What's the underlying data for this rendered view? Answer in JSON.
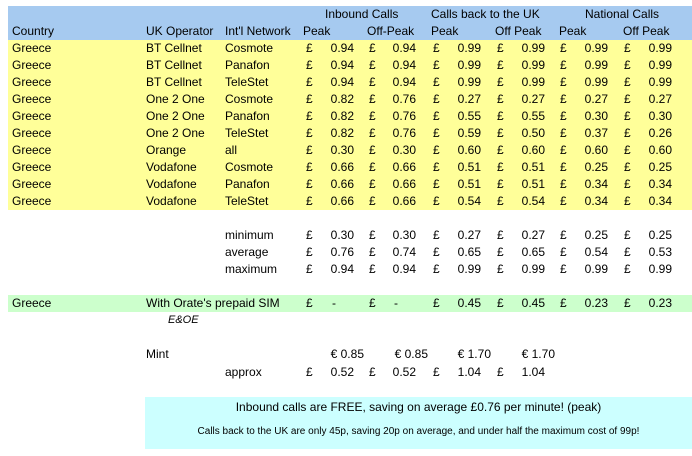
{
  "header": {
    "groups": [
      "Inbound Calls",
      "Calls back to the UK",
      "National Calls"
    ],
    "columns": [
      "Country",
      "UK Operator",
      "Int'l Network",
      "Peak",
      "Off-Peak",
      "Peak",
      "Off Peak",
      "Peak",
      "Off Peak"
    ]
  },
  "currency": "£",
  "rows": [
    {
      "country": "Greece",
      "operator": "BT Cellnet",
      "network": "Cosmote",
      "v": [
        "0.94",
        "0.94",
        "0.99",
        "0.99",
        "0.99",
        "0.99"
      ]
    },
    {
      "country": "Greece",
      "operator": "BT Cellnet",
      "network": "Panafon",
      "v": [
        "0.94",
        "0.94",
        "0.99",
        "0.99",
        "0.99",
        "0.99"
      ]
    },
    {
      "country": "Greece",
      "operator": "BT Cellnet",
      "network": "TeleStet",
      "v": [
        "0.94",
        "0.94",
        "0.99",
        "0.99",
        "0.99",
        "0.99"
      ]
    },
    {
      "country": "Greece",
      "operator": "One 2 One",
      "network": "Cosmote",
      "v": [
        "0.82",
        "0.76",
        "0.27",
        "0.27",
        "0.27",
        "0.27"
      ]
    },
    {
      "country": "Greece",
      "operator": "One 2 One",
      "network": "Panafon",
      "v": [
        "0.82",
        "0.76",
        "0.55",
        "0.55",
        "0.30",
        "0.30"
      ]
    },
    {
      "country": "Greece",
      "operator": "One 2 One",
      "network": "TeleStet",
      "v": [
        "0.82",
        "0.76",
        "0.59",
        "0.50",
        "0.37",
        "0.26"
      ]
    },
    {
      "country": "Greece",
      "operator": "Orange",
      "network": "all",
      "v": [
        "0.30",
        "0.30",
        "0.60",
        "0.60",
        "0.60",
        "0.60"
      ]
    },
    {
      "country": "Greece",
      "operator": "Vodafone",
      "network": "Cosmote",
      "v": [
        "0.66",
        "0.66",
        "0.51",
        "0.51",
        "0.25",
        "0.25"
      ]
    },
    {
      "country": "Greece",
      "operator": "Vodafone",
      "network": "Panafon",
      "v": [
        "0.66",
        "0.66",
        "0.51",
        "0.51",
        "0.34",
        "0.34"
      ]
    },
    {
      "country": "Greece",
      "operator": "Vodafone",
      "network": "TeleStet",
      "v": [
        "0.66",
        "0.66",
        "0.54",
        "0.54",
        "0.34",
        "0.34"
      ]
    }
  ],
  "stats": [
    {
      "label": "minimum",
      "v": [
        "0.30",
        "0.30",
        "0.27",
        "0.27",
        "0.25",
        "0.25"
      ]
    },
    {
      "label": "average",
      "v": [
        "0.76",
        "0.74",
        "0.65",
        "0.65",
        "0.54",
        "0.53"
      ]
    },
    {
      "label": "maximum",
      "v": [
        "0.94",
        "0.94",
        "0.99",
        "0.99",
        "0.99",
        "0.99"
      ]
    }
  ],
  "orate": {
    "country": "Greece",
    "label": "With Orate's prepaid SIM",
    "v": [
      "-",
      "-",
      "0.45",
      "0.45",
      "0.23",
      "0.23"
    ]
  },
  "eoe": "E&OE",
  "mint": {
    "label": "Mint",
    "euro": [
      "€ 0.85",
      "€ 0.85",
      "€ 1.70",
      "€ 1.70"
    ],
    "approx_label": "approx",
    "gbp": [
      "0.52",
      "0.52",
      "1.04",
      "1.04"
    ]
  },
  "messages": {
    "line1": "Inbound calls are FREE, saving on average £0.76 per minute! (peak)",
    "line2": "Calls back to the UK are only 45p, saving 20p on average, and under half the maximum cost of 99p!"
  },
  "colors": {
    "header": "#a6caf0",
    "highlight": "#ffff99",
    "orate": "#ccffcc",
    "message": "#ccffff"
  }
}
